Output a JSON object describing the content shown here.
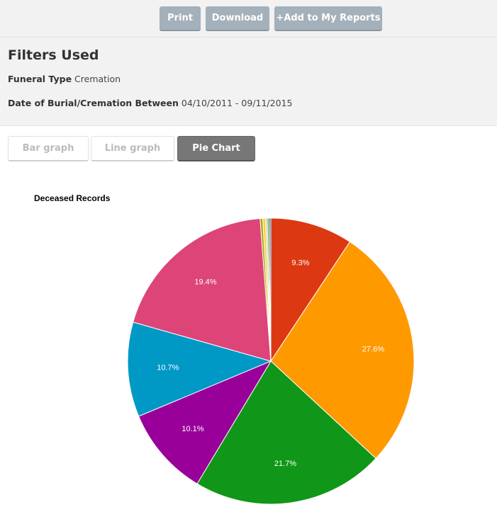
{
  "toolbar": {
    "print_label": "Print",
    "download_label": "Download",
    "add_reports_label": "+Add to My Reports"
  },
  "filters": {
    "title": "Filters Used",
    "funeral_type_label": "Funeral Type",
    "funeral_type_value": "Cremation",
    "date_label": "Date of Burial/Cremation Between",
    "date_value": "04/10/2011 - 09/11/2015"
  },
  "tabs": [
    {
      "label": "Bar graph",
      "active": false
    },
    {
      "label": "Line graph",
      "active": false
    },
    {
      "label": "Pie Chart",
      "active": true
    }
  ],
  "chart_data": {
    "type": "pie",
    "title": "Deceased Records",
    "slices": [
      {
        "value": 9.3,
        "label": "9.3%",
        "color": "#dc3912"
      },
      {
        "value": 27.6,
        "label": "27.6%",
        "color": "#ff9900"
      },
      {
        "value": 21.7,
        "label": "21.7%",
        "color": "#109618"
      },
      {
        "value": 10.1,
        "label": "10.1%",
        "color": "#990099"
      },
      {
        "value": 10.7,
        "label": "10.7%",
        "color": "#0099c6"
      },
      {
        "value": 19.4,
        "label": "19.4%",
        "color": "#dd4477"
      },
      {
        "value": 0.3,
        "label": "",
        "color": "#aaaa11"
      },
      {
        "value": 0.3,
        "label": "",
        "color": "#ffcc33"
      },
      {
        "value": 0.2,
        "label": "",
        "color": "#cccccc"
      },
      {
        "value": 0.2,
        "label": "",
        "color": "#66aa00"
      },
      {
        "value": 0.2,
        "label": "",
        "color": "#3366cc"
      }
    ]
  }
}
